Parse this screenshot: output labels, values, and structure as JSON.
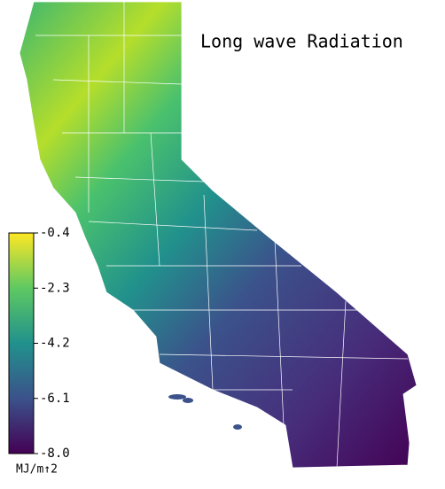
{
  "title": "Long wave Radiation",
  "colorbar": {
    "label": "MJ/m↑2",
    "lim": [
      -8.0,
      -0.4
    ],
    "ticks": [
      -0.4,
      -2.3,
      -4.2,
      -6.1,
      {
        "value": -8.0,
        "label": "-8.0"
      }
    ]
  }
}
